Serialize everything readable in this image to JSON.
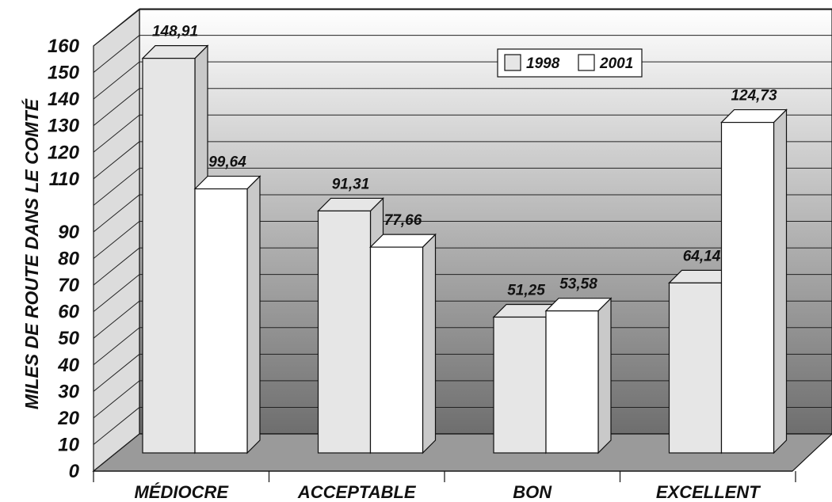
{
  "chart_data": {
    "type": "bar",
    "title": "",
    "xlabel": "",
    "ylabel": "MILES DE ROUTE DANS LE COMTÉ",
    "categories": [
      "MÉDIOCRE",
      "ACCEPTABLE",
      "BON",
      "EXCELLENT"
    ],
    "series": [
      {
        "name": "1998",
        "values": [
          148.91,
          91.31,
          51.25,
          64.14
        ],
        "labels": [
          "148,91",
          "91,31",
          "51,25",
          "64,14"
        ],
        "color": "#e6e6e6"
      },
      {
        "name": "2001",
        "values": [
          99.64,
          77.66,
          53.58,
          124.73
        ],
        "labels": [
          "99,64",
          "77,66",
          "53,58",
          "124,73"
        ],
        "color": "#ffffff"
      }
    ],
    "yticks": [
      0,
      10,
      20,
      30,
      40,
      50,
      60,
      70,
      80,
      90,
      110,
      120,
      130,
      140,
      150,
      160
    ],
    "ylim": [
      0,
      160
    ],
    "grid": true,
    "legend": "top-center",
    "style": "3d"
  }
}
